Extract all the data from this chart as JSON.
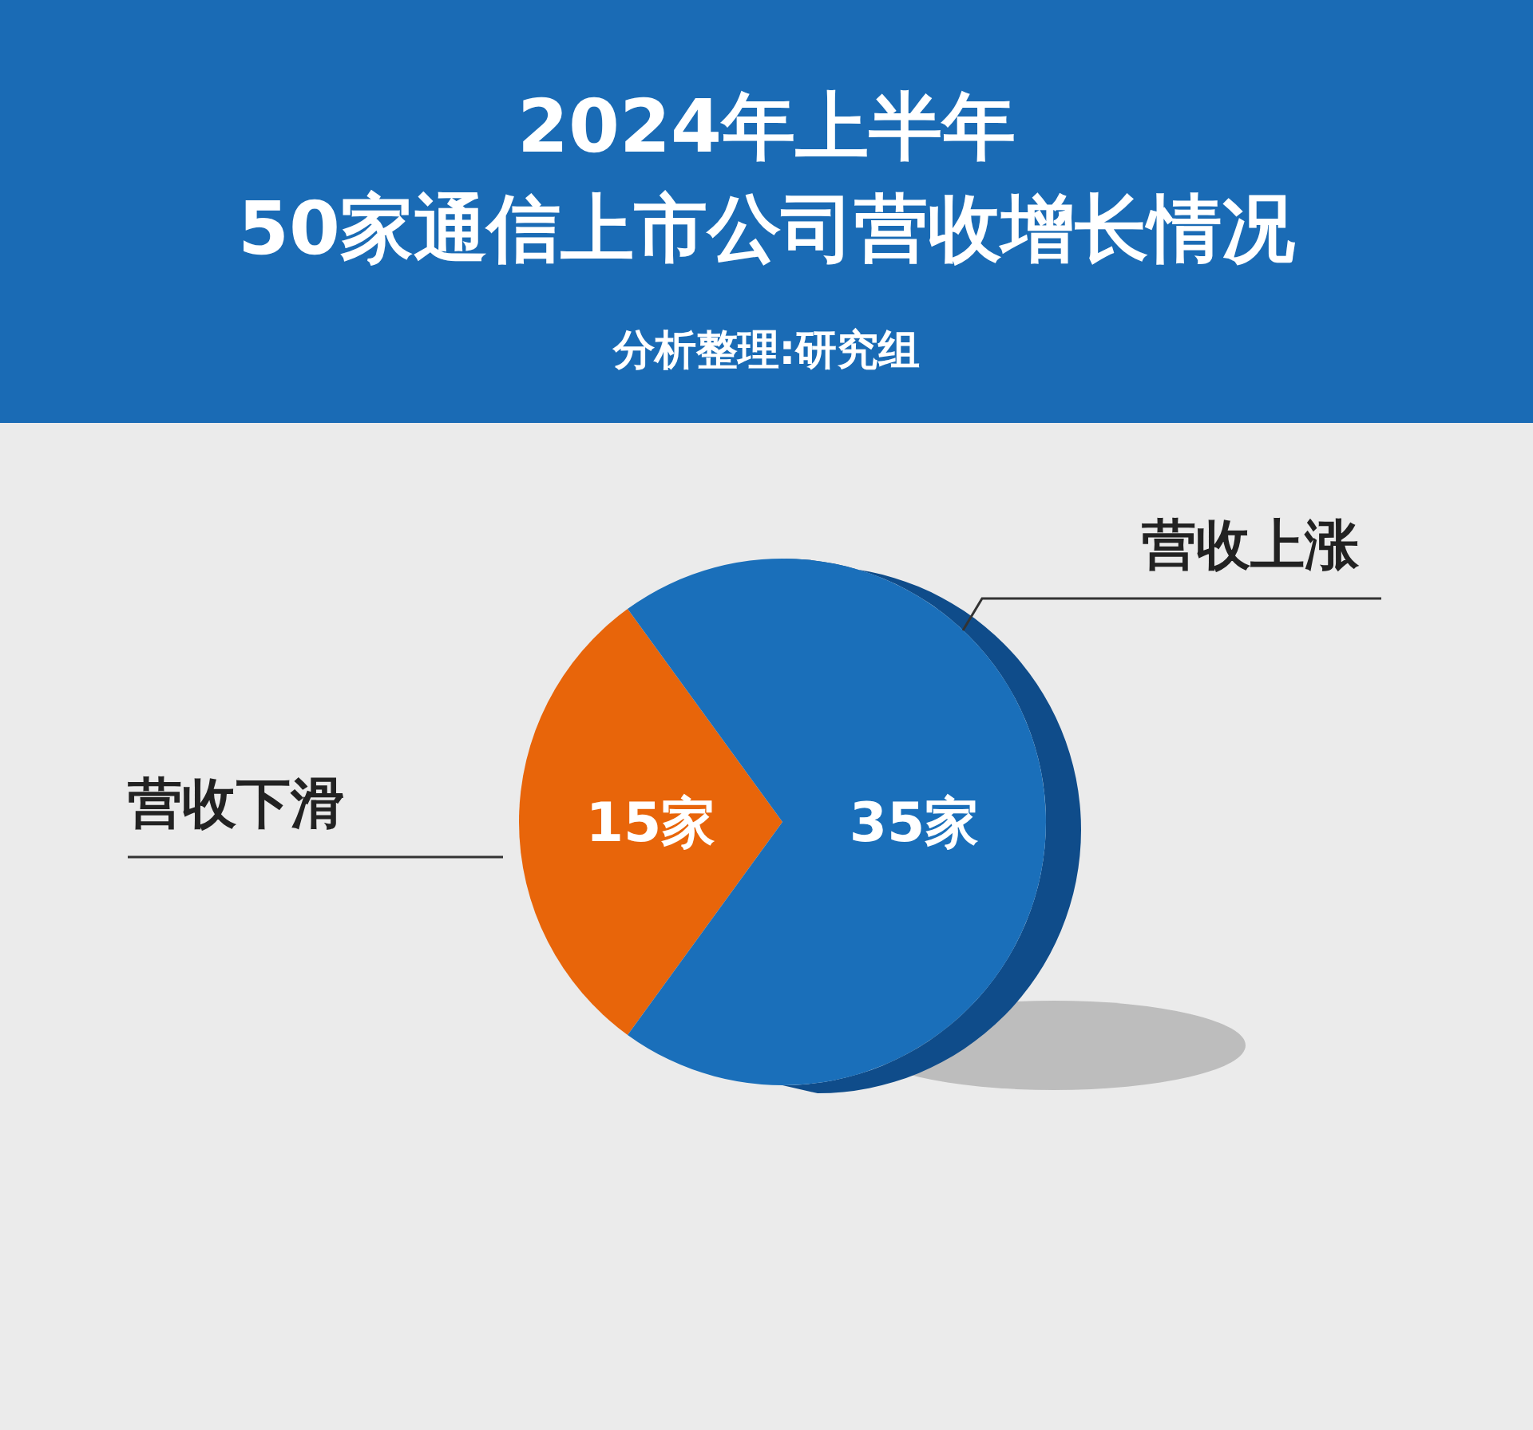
{
  "chart_data": {
    "type": "pie",
    "title": "2024年上半年\n50家通信上市公司营收增长情况",
    "subtitle": "分析整理:研究组",
    "categories": [
      "营收下滑",
      "营收上涨"
    ],
    "values": [
      15,
      35
    ],
    "colors": [
      "#e8650a",
      "#1a6fba"
    ],
    "value_labels": [
      "15家",
      "35家"
    ]
  }
}
